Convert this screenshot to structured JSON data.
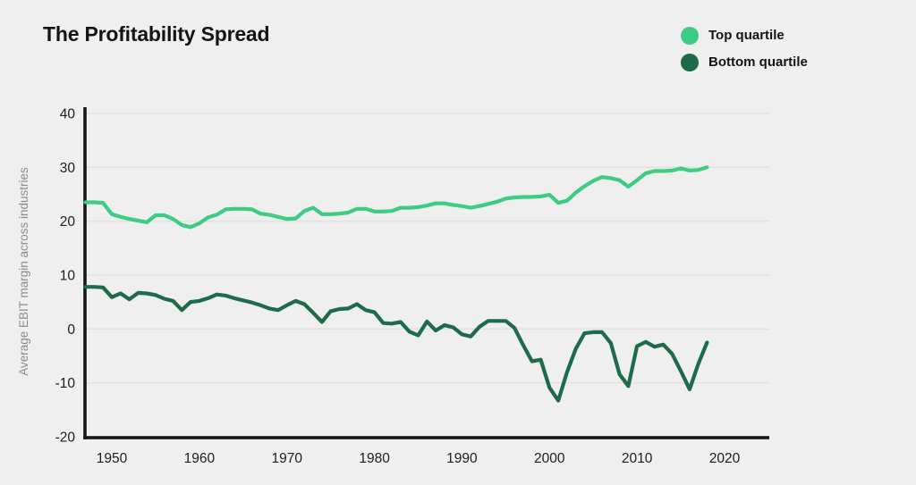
{
  "header": {
    "title": "The Profitability Spread"
  },
  "colors": {
    "background": "#efefef",
    "gridline": "#e2e2e2",
    "axis": "#161616",
    "tick_text": "#202020",
    "axis_title_text": "#8c8c8c",
    "top_quartile": "#3ecb83",
    "bottom_quartile": "#1d6b4a"
  },
  "chart_data": {
    "type": "line",
    "title": "The Profitability Spread",
    "xlabel": "",
    "ylabel": "Average EBIT margin across industries",
    "xlim": [
      1947,
      2025
    ],
    "ylim": [
      -20,
      40
    ],
    "grid": true,
    "legend_position": "top-right",
    "xticks": [
      1950,
      1960,
      1970,
      1980,
      1990,
      2000,
      2010,
      2020
    ],
    "yticks": [
      40,
      30,
      20,
      10,
      0,
      -10,
      -20
    ],
    "x": [
      1947,
      1948,
      1949,
      1950,
      1951,
      1952,
      1953,
      1954,
      1955,
      1956,
      1957,
      1958,
      1959,
      1960,
      1961,
      1962,
      1963,
      1964,
      1965,
      1966,
      1967,
      1968,
      1969,
      1970,
      1971,
      1972,
      1973,
      1974,
      1975,
      1976,
      1977,
      1978,
      1979,
      1980,
      1981,
      1982,
      1983,
      1984,
      1985,
      1986,
      1987,
      1988,
      1989,
      1990,
      1991,
      1992,
      1993,
      1994,
      1995,
      1996,
      1997,
      1998,
      1999,
      2000,
      2001,
      2002,
      2003,
      2004,
      2005,
      2006,
      2007,
      2008,
      2009,
      2010,
      2011,
      2012,
      2013,
      2014,
      2015,
      2016,
      2017,
      2018
    ],
    "series": [
      {
        "name": "Top quartile",
        "color": "#3ecb83",
        "values": [
          23.5,
          23.5,
          23.4,
          21.3,
          20.8,
          20.4,
          20.1,
          19.8,
          21.1,
          21.1,
          20.4,
          19.3,
          18.9,
          19.6,
          20.7,
          21.2,
          22.2,
          22.3,
          22.3,
          22.2,
          21.4,
          21.2,
          20.8,
          20.4,
          20.5,
          21.9,
          22.5,
          21.3,
          21.3,
          21.4,
          21.6,
          22.3,
          22.3,
          21.8,
          21.8,
          21.9,
          22.5,
          22.5,
          22.6,
          22.9,
          23.3,
          23.3,
          23.0,
          22.8,
          22.5,
          22.8,
          23.2,
          23.6,
          24.2,
          24.4,
          24.5,
          24.5,
          24.6,
          24.9,
          23.4,
          23.8,
          25.3,
          26.5,
          27.5,
          28.2,
          28.0,
          27.6,
          26.4,
          27.6,
          28.9,
          29.3,
          29.3,
          29.4,
          29.8,
          29.4,
          29.5,
          30.0
        ]
      },
      {
        "name": "Bottom quartile",
        "color": "#1d6b4a",
        "values": [
          7.8,
          7.8,
          7.7,
          5.9,
          6.6,
          5.5,
          6.7,
          6.6,
          6.3,
          5.6,
          5.2,
          3.5,
          5.0,
          5.2,
          5.7,
          6.4,
          6.2,
          5.7,
          5.3,
          4.9,
          4.4,
          3.8,
          3.5,
          4.4,
          5.2,
          4.6,
          3.0,
          1.3,
          3.3,
          3.7,
          3.8,
          4.6,
          3.5,
          3.1,
          1.1,
          1.0,
          1.3,
          -0.5,
          -1.2,
          1.4,
          -0.3,
          0.7,
          0.3,
          -1.0,
          -1.4,
          0.4,
          1.5,
          1.5,
          1.5,
          0.2,
          -3.0,
          -6.0,
          -5.7,
          -10.9,
          -13.3,
          -8.0,
          -3.7,
          -0.8,
          -0.6,
          -0.6,
          -2.6,
          -8.4,
          -10.6,
          -3.2,
          -2.4,
          -3.3,
          -2.9,
          -4.6,
          -7.8,
          -11.2,
          -6.5,
          -2.5
        ]
      }
    ]
  }
}
